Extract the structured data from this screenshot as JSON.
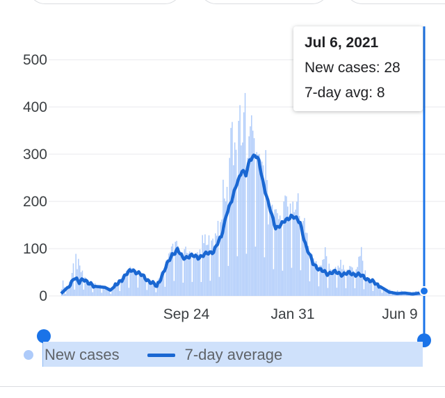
{
  "chart_data": {
    "type": "bar+line",
    "title": "",
    "xlabel": "",
    "ylabel": "",
    "ylim": [
      0,
      500
    ],
    "y_ticks": [
      "500",
      "400",
      "300",
      "200",
      "100",
      "0"
    ],
    "x_ticks": [
      "Sep 24",
      "Jan 31",
      "Jun 9"
    ],
    "grid": true,
    "legend_position": "bottom",
    "series": [
      {
        "name": "New cases",
        "kind": "bar",
        "color": "#aecbfa"
      },
      {
        "name": "7-day average",
        "kind": "line",
        "color": "#1a67d2"
      }
    ],
    "seven_day_average_anchors": [
      [
        0,
        5
      ],
      [
        5,
        18
      ],
      [
        10,
        38
      ],
      [
        14,
        28
      ],
      [
        17,
        38
      ],
      [
        22,
        24
      ],
      [
        27,
        20
      ],
      [
        34,
        18
      ],
      [
        38,
        12
      ],
      [
        44,
        26
      ],
      [
        50,
        45
      ],
      [
        55,
        55
      ],
      [
        59,
        50
      ],
      [
        64,
        40
      ],
      [
        70,
        28
      ],
      [
        74,
        20
      ],
      [
        80,
        55
      ],
      [
        86,
        88
      ],
      [
        90,
        98
      ],
      [
        94,
        80
      ],
      [
        100,
        85
      ],
      [
        106,
        82
      ],
      [
        112,
        88
      ],
      [
        118,
        95
      ],
      [
        124,
        125
      ],
      [
        128,
        175
      ],
      [
        132,
        200
      ],
      [
        136,
        240
      ],
      [
        140,
        265
      ],
      [
        143,
        255
      ],
      [
        146,
        290
      ],
      [
        150,
        298
      ],
      [
        153,
        285
      ],
      [
        156,
        245
      ],
      [
        160,
        200
      ],
      [
        163,
        170
      ],
      [
        166,
        145
      ],
      [
        170,
        150
      ],
      [
        174,
        160
      ],
      [
        178,
        170
      ],
      [
        181,
        165
      ],
      [
        185,
        155
      ],
      [
        190,
        100
      ],
      [
        195,
        70
      ],
      [
        200,
        55
      ],
      [
        206,
        48
      ],
      [
        212,
        50
      ],
      [
        218,
        46
      ],
      [
        224,
        48
      ],
      [
        230,
        45
      ],
      [
        236,
        38
      ],
      [
        242,
        28
      ],
      [
        248,
        18
      ],
      [
        254,
        8
      ],
      [
        260,
        5
      ],
      [
        266,
        6
      ],
      [
        272,
        4
      ],
      [
        278,
        6
      ],
      [
        281,
        8
      ]
    ],
    "daily_new_cases_anchors": [
      [
        4,
        10
      ],
      [
        7,
        40
      ],
      [
        10,
        90
      ],
      [
        14,
        60
      ],
      [
        20,
        30
      ],
      [
        26,
        28
      ],
      [
        32,
        20
      ],
      [
        40,
        15
      ],
      [
        46,
        40
      ],
      [
        52,
        65
      ],
      [
        58,
        52
      ],
      [
        66,
        38
      ],
      [
        72,
        18
      ],
      [
        80,
        70
      ],
      [
        84,
        110
      ],
      [
        88,
        120
      ],
      [
        92,
        90
      ],
      [
        96,
        100
      ],
      [
        100,
        95
      ],
      [
        106,
        90
      ],
      [
        110,
        130
      ],
      [
        114,
        135
      ],
      [
        118,
        110
      ],
      [
        122,
        170
      ],
      [
        125,
        240
      ],
      [
        128,
        220
      ],
      [
        130,
        320
      ],
      [
        133,
        370
      ],
      [
        135,
        300
      ],
      [
        138,
        385
      ],
      [
        140,
        340
      ],
      [
        142,
        415
      ],
      [
        144,
        320
      ],
      [
        147,
        365
      ],
      [
        150,
        330
      ],
      [
        153,
        300
      ],
      [
        156,
        270
      ],
      [
        158,
        360
      ],
      [
        160,
        160
      ],
      [
        162,
        200
      ],
      [
        165,
        190
      ],
      [
        168,
        165
      ],
      [
        171,
        180
      ],
      [
        174,
        220
      ],
      [
        176,
        160
      ],
      [
        178,
        250
      ],
      [
        180,
        175
      ],
      [
        183,
        210
      ],
      [
        186,
        140
      ],
      [
        188,
        175
      ],
      [
        192,
        95
      ],
      [
        196,
        75
      ],
      [
        200,
        65
      ],
      [
        204,
        95
      ],
      [
        208,
        55
      ],
      [
        212,
        60
      ],
      [
        216,
        70
      ],
      [
        220,
        55
      ],
      [
        224,
        65
      ],
      [
        228,
        55
      ],
      [
        232,
        100
      ],
      [
        236,
        40
      ],
      [
        240,
        30
      ],
      [
        244,
        25
      ],
      [
        248,
        20
      ],
      [
        252,
        15
      ],
      [
        256,
        10
      ],
      [
        260,
        12
      ],
      [
        266,
        8
      ],
      [
        272,
        10
      ],
      [
        278,
        12
      ],
      [
        281,
        28
      ]
    ],
    "selected_point": {
      "date": "Jul 6, 2021",
      "new_cases_label": "New cases: 28",
      "avg_label": "7-day avg: 8",
      "new_cases": 28,
      "seven_day_avg": 8
    }
  }
}
